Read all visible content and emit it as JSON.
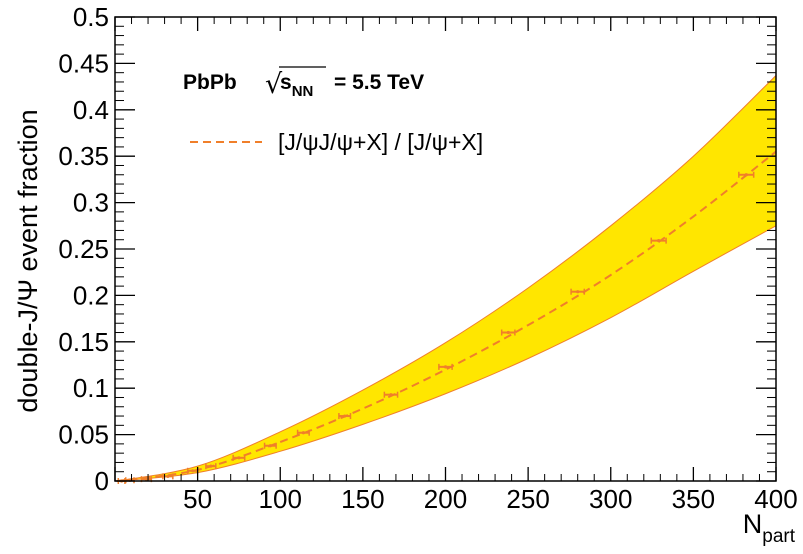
{
  "chart_data": {
    "type": "line",
    "annotation": {
      "system": "PbPb",
      "sqrt_symbol": "√",
      "s_base": "s",
      "s_subscript": "NN",
      "energy": "= 5.5 TeV"
    },
    "xlabel": {
      "base": "N",
      "subscript": "part"
    },
    "ylabel": "double-J/Ψ event fraction",
    "xlim": [
      0,
      400
    ],
    "ylim": [
      0,
      0.5
    ],
    "xticks": [
      50,
      100,
      150,
      200,
      250,
      300,
      350,
      400
    ],
    "xtick_labels": [
      "50",
      "100",
      "150",
      "200",
      "250",
      "300",
      "350",
      "400"
    ],
    "yticks": [
      0,
      0.05,
      0.1,
      0.15,
      0.2,
      0.25,
      0.3,
      0.35,
      0.4,
      0.45,
      0.5
    ],
    "ytick_labels": [
      "0",
      "0.05",
      "0.1",
      "0.15",
      "0.2",
      "0.25",
      "0.3",
      "0.35",
      "0.4",
      "0.45",
      "0.5"
    ],
    "grid": false,
    "legend_placement": "top-left",
    "series": [
      {
        "name": "[J/ψJ/ψ+X] / [J/ψ+X]",
        "style": "dashed",
        "color": "#f07f2a",
        "x": [
          1,
          50,
          100,
          150,
          200,
          250,
          300,
          350,
          400
        ],
        "y": [
          0,
          0.012,
          0.042,
          0.078,
          0.12,
          0.168,
          0.222,
          0.285,
          0.355
        ]
      }
    ],
    "band": {
      "color": "#ffe600",
      "edge_color": "#f07f2a",
      "x": [
        1,
        50,
        100,
        150,
        200,
        250,
        300,
        350,
        400
      ],
      "upper": [
        0,
        0.016,
        0.053,
        0.098,
        0.149,
        0.208,
        0.275,
        0.35,
        0.437
      ],
      "lower": [
        0,
        0.009,
        0.032,
        0.061,
        0.094,
        0.132,
        0.176,
        0.226,
        0.275
      ]
    },
    "points": {
      "color": "#f07f2a",
      "x": [
        4,
        9,
        19,
        32,
        47,
        58,
        75,
        94,
        114,
        139,
        167,
        200,
        238,
        280,
        329,
        382
      ],
      "y": [
        0,
        0.0008,
        0.002,
        0.005,
        0.011,
        0.016,
        0.025,
        0.038,
        0.052,
        0.07,
        0.093,
        0.123,
        0.16,
        0.204,
        0.259,
        0.33
      ],
      "xerr": [
        2,
        2.5,
        3,
        3,
        3,
        3,
        3.5,
        3.5,
        3.5,
        3.5,
        4,
        4,
        4,
        4,
        4.5,
        4.5
      ]
    }
  }
}
